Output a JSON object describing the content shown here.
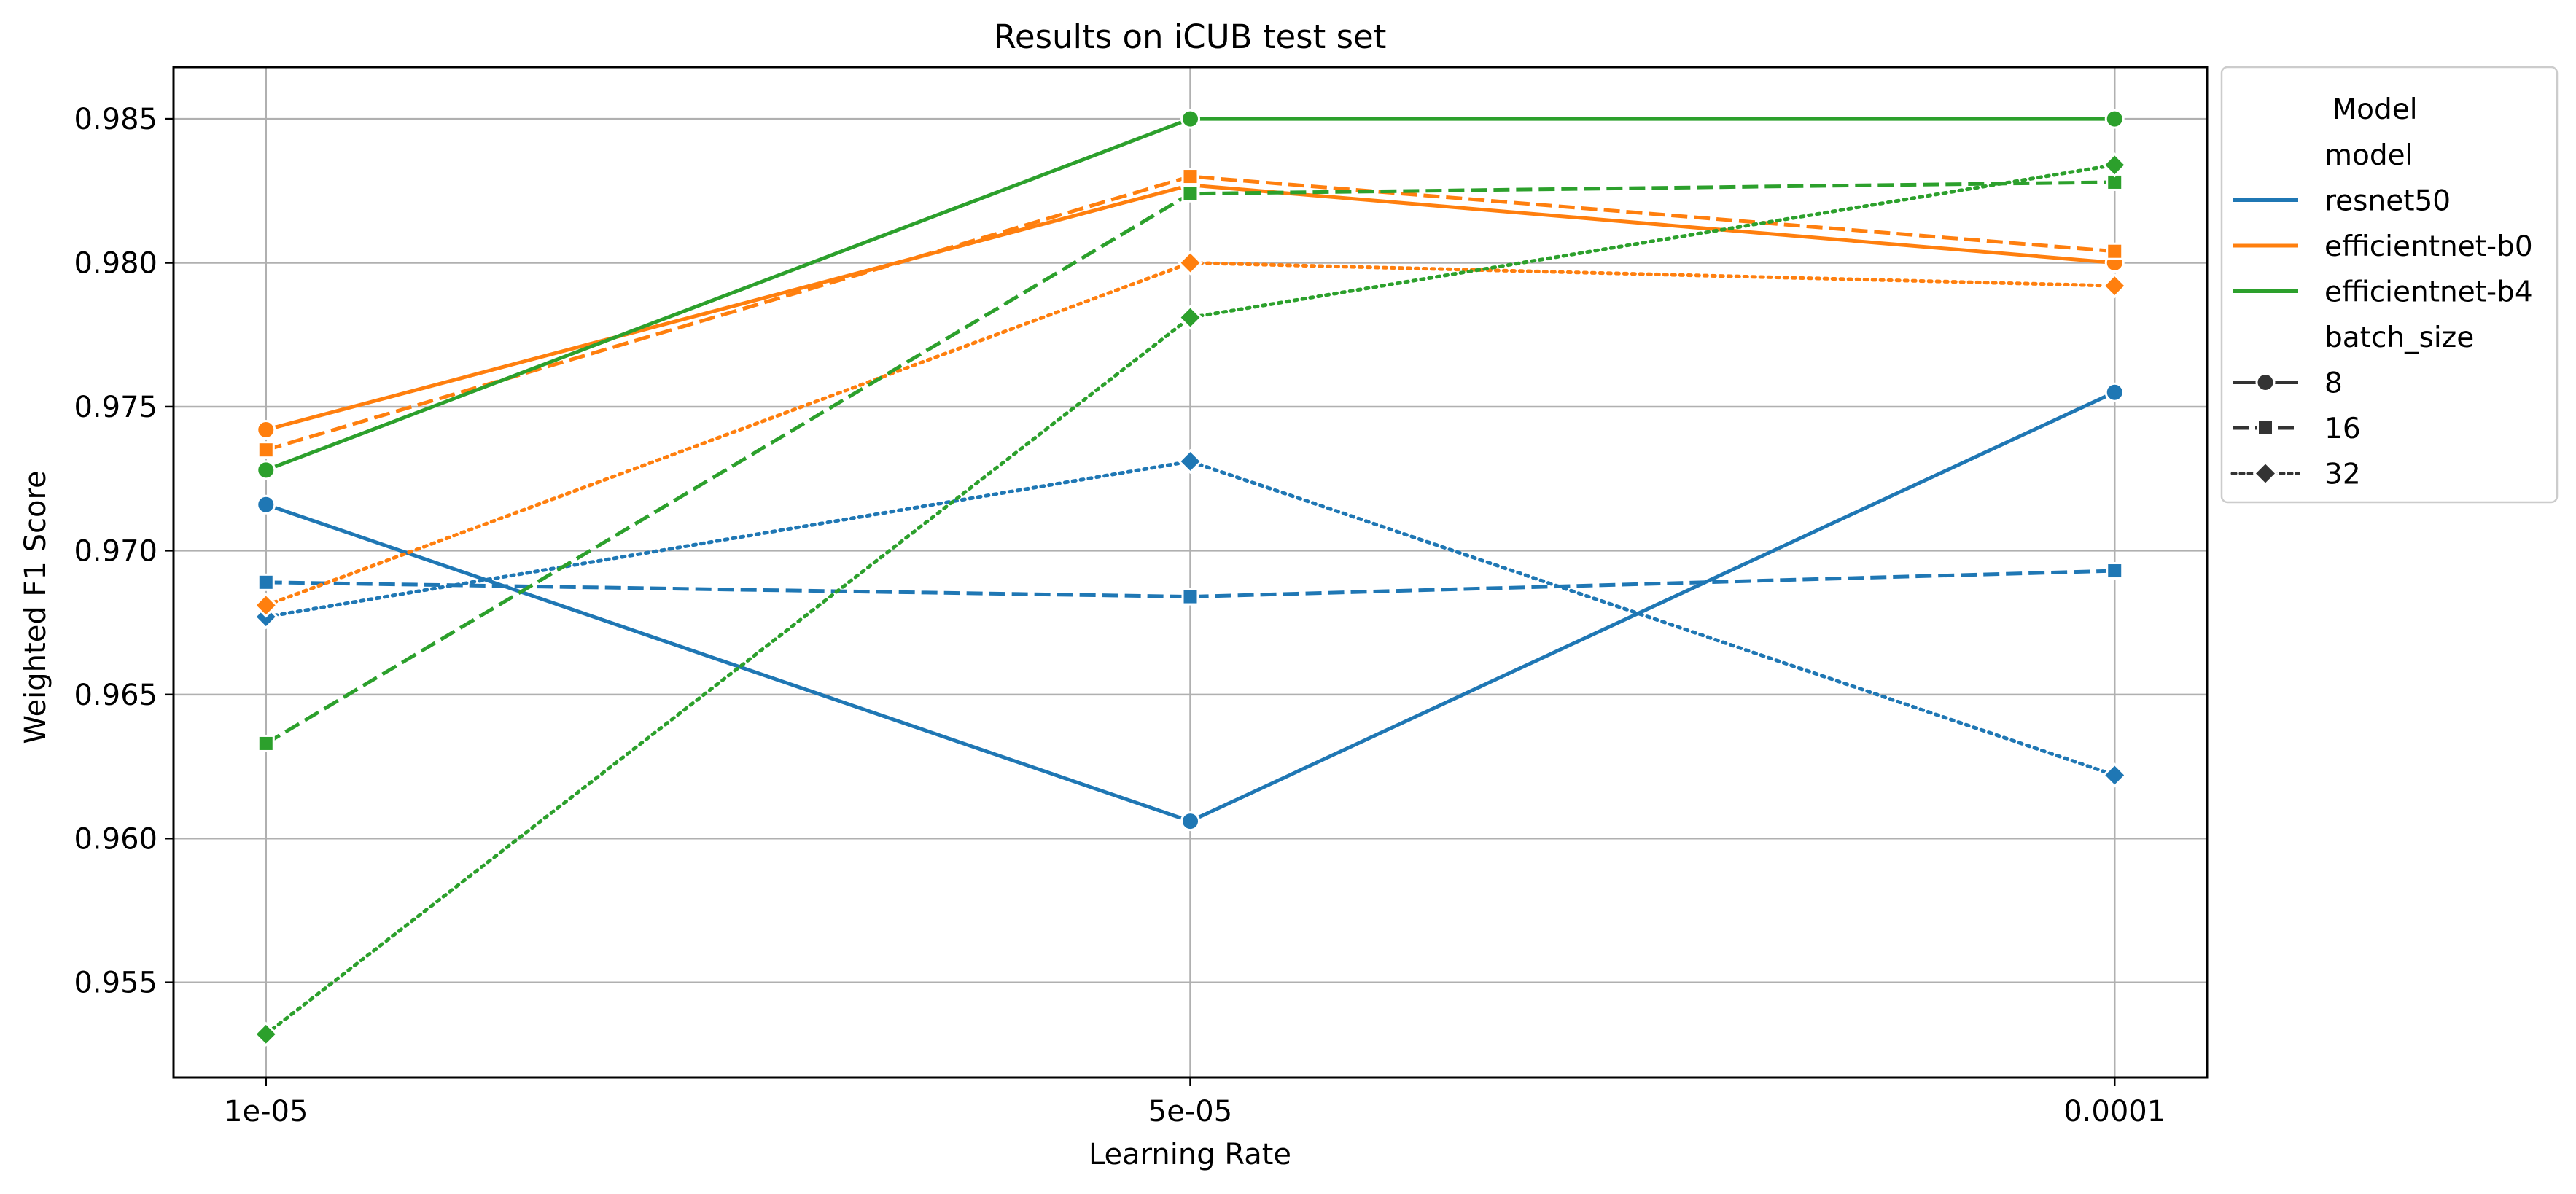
{
  "chart_data": {
    "type": "line",
    "title": "Results on iCUB test set",
    "xlabel": "Learning Rate",
    "ylabel": "Weighted F1 Score",
    "x_categories": [
      "1e-05",
      "5e-05",
      "0.0001"
    ],
    "ylim": [
      0.9517,
      0.9868
    ],
    "yticks": [
      0.955,
      0.96,
      0.965,
      0.97,
      0.975,
      0.98,
      0.985
    ],
    "ytick_labels": [
      "0.955",
      "0.960",
      "0.965",
      "0.970",
      "0.975",
      "0.980",
      "0.985"
    ],
    "grid": true,
    "legend_position": "outside-right",
    "legend": {
      "title": "Model",
      "hue_title": "model",
      "style_title": "batch_size",
      "models": [
        {
          "name": "resnet50",
          "color": "#1f77b4"
        },
        {
          "name": "efficientnet-b0",
          "color": "#ff7f0e"
        },
        {
          "name": "efficientnet-b4",
          "color": "#2ca02c"
        }
      ],
      "batch_sizes": [
        {
          "name": "8",
          "dash": "solid",
          "marker": "circle"
        },
        {
          "name": "16",
          "dash": "dashed",
          "marker": "square"
        },
        {
          "name": "32",
          "dash": "dotted",
          "marker": "diamond"
        }
      ]
    },
    "series": [
      {
        "model": "resnet50",
        "batch_size": "8",
        "values": [
          0.9716,
          0.9606,
          0.9755
        ]
      },
      {
        "model": "resnet50",
        "batch_size": "16",
        "values": [
          0.9689,
          0.9684,
          0.9693
        ]
      },
      {
        "model": "resnet50",
        "batch_size": "32",
        "values": [
          0.9677,
          0.9731,
          0.9622
        ]
      },
      {
        "model": "efficientnet-b0",
        "batch_size": "8",
        "values": [
          0.9742,
          0.9827,
          0.98
        ]
      },
      {
        "model": "efficientnet-b0",
        "batch_size": "16",
        "values": [
          0.9735,
          0.983,
          0.9804
        ]
      },
      {
        "model": "efficientnet-b0",
        "batch_size": "32",
        "values": [
          0.9681,
          0.98,
          0.9792
        ]
      },
      {
        "model": "efficientnet-b4",
        "batch_size": "8",
        "values": [
          0.9728,
          0.985,
          0.985
        ]
      },
      {
        "model": "efficientnet-b4",
        "batch_size": "16",
        "values": [
          0.9633,
          0.9824,
          0.9828
        ]
      },
      {
        "model": "efficientnet-b4",
        "batch_size": "32",
        "values": [
          0.9532,
          0.9781,
          0.9834
        ]
      }
    ]
  }
}
